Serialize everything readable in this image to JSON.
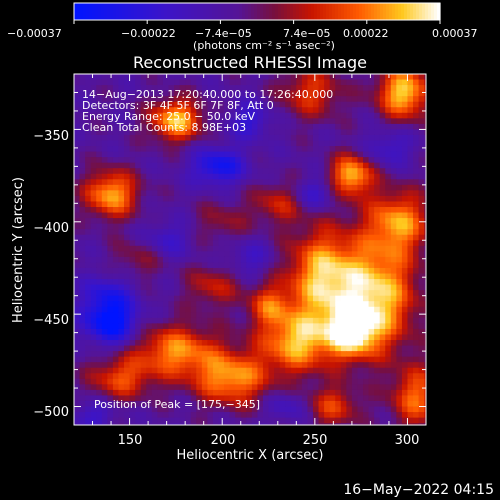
{
  "chart_data": {
    "type": "heatmap",
    "title": "Reconstructed RHESSI Image",
    "xlabel": "Heliocentric X (arcsec)",
    "ylabel": "Heliocentric Y (arcsec)",
    "xlim": [
      120,
      310
    ],
    "ylim": [
      -510,
      -320
    ],
    "x_ticks": [
      "150",
      "200",
      "250",
      "300"
    ],
    "y_ticks": [
      "−350",
      "−400",
      "−450",
      "−500"
    ],
    "colorbar": {
      "range": [
        -0.00037,
        0.00037
      ],
      "ticks": [
        "−0.00037",
        "−0.00022",
        "−7.4e−05",
        "7.4e−05",
        "0.00022",
        "0.00037"
      ],
      "unit_label": "(photons cm⁻² s⁻¹ asec⁻²)"
    },
    "annotations": [
      "14−Aug−2013 17:20:40.000 to 17:26:40.000",
      "Detectors: 3F 4F 5F 6F 7F 8F, Att 0",
      "Energy Range: 25.0 − 50.0 keV",
      "Clean    Total Counts: 8.98E+03"
    ],
    "peak_label": "Position of Peak = [175,−345]",
    "peak_position": [
      175,
      -345
    ],
    "blobs": [
      {
        "x": 298,
        "y": -330,
        "v": 1.0,
        "sx": 10,
        "sy": 10
      },
      {
        "x": 175,
        "y": -345,
        "v": 0.95,
        "sx": 10,
        "sy": 8
      },
      {
        "x": 270,
        "y": -375,
        "v": 0.95,
        "sx": 8,
        "sy": 8
      },
      {
        "x": 140,
        "y": -385,
        "v": 0.9,
        "sx": 10,
        "sy": 9
      },
      {
        "x": 248,
        "y": -330,
        "v": 0.55,
        "sx": 12,
        "sy": 10
      },
      {
        "x": 255,
        "y": -430,
        "v": 1.0,
        "sx": 14,
        "sy": 18
      },
      {
        "x": 285,
        "y": -440,
        "v": 0.95,
        "sx": 14,
        "sy": 20
      },
      {
        "x": 240,
        "y": -465,
        "v": 0.9,
        "sx": 14,
        "sy": 12
      },
      {
        "x": 295,
        "y": -400,
        "v": 0.8,
        "sx": 12,
        "sy": 12
      },
      {
        "x": 230,
        "y": -390,
        "v": 0.45,
        "sx": 10,
        "sy": 8
      },
      {
        "x": 175,
        "y": -470,
        "v": 0.8,
        "sx": 16,
        "sy": 10
      },
      {
        "x": 205,
        "y": -485,
        "v": 0.85,
        "sx": 14,
        "sy": 10
      },
      {
        "x": 145,
        "y": -485,
        "v": 0.6,
        "sx": 12,
        "sy": 8
      },
      {
        "x": 195,
        "y": -435,
        "v": 0.45,
        "sx": 10,
        "sy": 8
      },
      {
        "x": 305,
        "y": -495,
        "v": 0.7,
        "sx": 10,
        "sy": 12
      },
      {
        "x": 260,
        "y": -500,
        "v": 0.55,
        "sx": 10,
        "sy": 8
      },
      {
        "x": 270,
        "y": -460,
        "v": 0.95,
        "sx": 10,
        "sy": 10
      },
      {
        "x": 225,
        "y": -445,
        "v": 0.55,
        "sx": 8,
        "sy": 8
      },
      {
        "x": 155,
        "y": -420,
        "v": 0.3,
        "sx": 10,
        "sy": 8
      },
      {
        "x": 200,
        "y": -400,
        "v": 0.3,
        "sx": 10,
        "sy": 8
      },
      {
        "x": 138,
        "y": -440,
        "v": -0.5,
        "sx": 10,
        "sy": 8
      },
      {
        "x": 140,
        "y": -455,
        "v": -0.9,
        "sx": 10,
        "sy": 8
      },
      {
        "x": 198,
        "y": -370,
        "v": -0.7,
        "sx": 10,
        "sy": 7
      },
      {
        "x": 250,
        "y": -385,
        "v": -0.4,
        "sx": 8,
        "sy": 6
      },
      {
        "x": 215,
        "y": -345,
        "v": -0.45,
        "sx": 8,
        "sy": 7
      },
      {
        "x": 290,
        "y": -360,
        "v": -0.35,
        "sx": 9,
        "sy": 7
      },
      {
        "x": 170,
        "y": -410,
        "v": -0.35,
        "sx": 9,
        "sy": 7
      },
      {
        "x": 215,
        "y": -420,
        "v": -0.3,
        "sx": 9,
        "sy": 7
      },
      {
        "x": 130,
        "y": -505,
        "v": -0.35,
        "sx": 8,
        "sy": 6
      },
      {
        "x": 235,
        "y": -500,
        "v": -0.3,
        "sx": 8,
        "sy": 6
      }
    ]
  },
  "footer_timestamp": "16−May−2022 04:15"
}
